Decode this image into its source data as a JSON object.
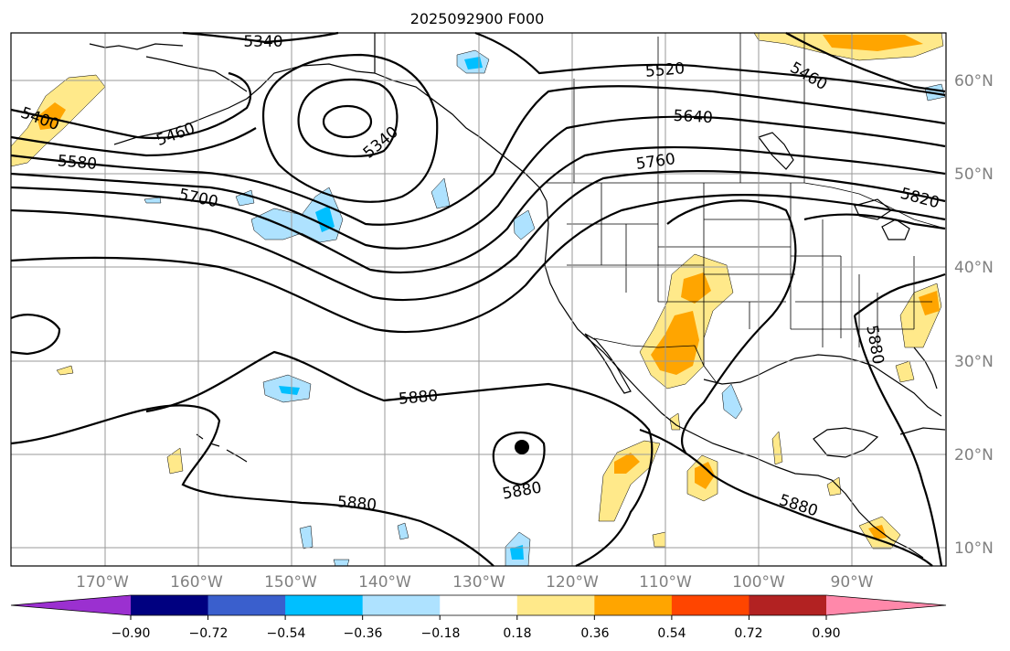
{
  "title": "2025092900 F000",
  "lon_labels": [
    "170°W",
    "160°W",
    "150°W",
    "140°W",
    "130°W",
    "120°W",
    "110°W",
    "100°W",
    "90°W"
  ],
  "lat_labels": [
    "60°N",
    "50°N",
    "40°N",
    "30°N",
    "20°N",
    "10°N"
  ],
  "colorbar": {
    "ticks": [
      "−0.90",
      "−0.72",
      "−0.54",
      "−0.36",
      "−0.18",
      "0.18",
      "0.36",
      "0.54",
      "0.72",
      "0.90"
    ],
    "colors": [
      "#9b30d0",
      "#000080",
      "#3a5fcd",
      "#00bfff",
      "#aee2ff",
      "#ffffff",
      "#ffe98a",
      "#ffa500",
      "#ff4500",
      "#b22222",
      "#ff88aa"
    ]
  },
  "contour_labels": [
    "5340",
    "5340",
    "5400",
    "5460",
    "5460",
    "5520",
    "5580",
    "5640",
    "5700",
    "5760",
    "5820",
    "5880",
    "5880",
    "5880",
    "5880",
    "5880"
  ],
  "colors": {
    "neg_light": "#aee2ff",
    "neg_mid": "#00bfff",
    "pos_light": "#ffe98a",
    "pos_mid": "#ffa500"
  }
}
